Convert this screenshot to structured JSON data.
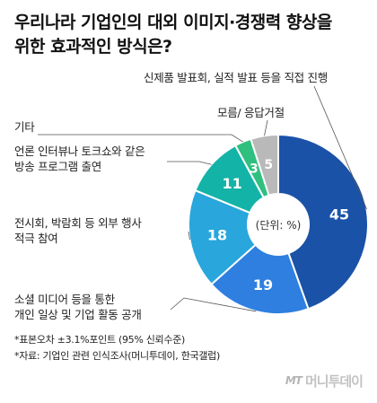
{
  "title": "우리나라 기업인의 대외 이미지·경쟁력 향상을\n위한 효과적인 방식은?",
  "chart_data": {
    "type": "pie",
    "variant": "donut",
    "center_label": "(단위: %)",
    "slices": [
      {
        "label": "신제품 발표회, 실적 발표 등을 직접 진행",
        "value": 45,
        "color": "#1a52a8"
      },
      {
        "label": "소셜 미디어 등을 통한\n개인 일상 및 기업 활동 공개",
        "value": 19,
        "color": "#2e7fe0"
      },
      {
        "label": "전시회, 박람회 등 외부 행사\n적극 참여",
        "value": 18,
        "color": "#29a6dc"
      },
      {
        "label": "언론 인터뷰나 토크쇼와 같은\n방송 프로그램 출연",
        "value": 11,
        "color": "#13b4a7"
      },
      {
        "label": "기타",
        "value": 3,
        "color": "#2fc07f"
      },
      {
        "label": "모름/ 응답거절",
        "value": 5,
        "color": "#b9b9b9"
      }
    ]
  },
  "notes": {
    "line1": "*표본오차 ±3.1%포인트 (95% 신뢰수준)",
    "line2": "*자료: 기업인 관련 인식조사(머니투데이, 한국갤럽)"
  },
  "brand": {
    "mt": "MT",
    "name": "머니투데이"
  }
}
